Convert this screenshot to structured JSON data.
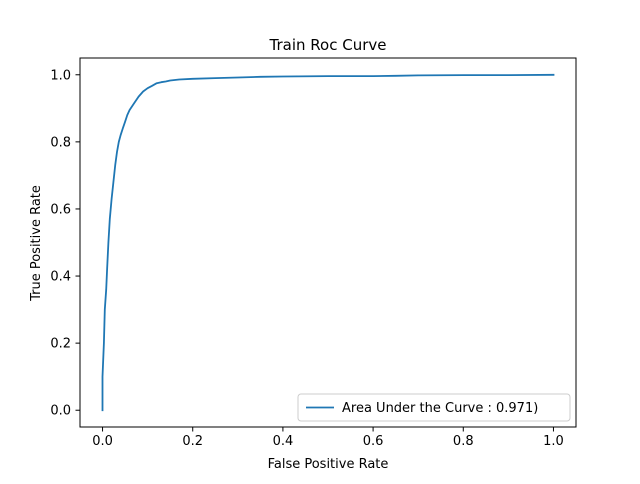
{
  "chart_data": {
    "type": "line",
    "title": "Train Roc Curve",
    "xlabel": "False Positive Rate",
    "ylabel": "True Positive Rate",
    "xlim": [
      -0.05,
      1.05
    ],
    "ylim": [
      -0.05,
      1.05
    ],
    "xticks": [
      0.0,
      0.2,
      0.4,
      0.6,
      0.8,
      1.0
    ],
    "xtick_labels": [
      "0.0",
      "0.2",
      "0.4",
      "0.6",
      "0.8",
      "1.0"
    ],
    "yticks": [
      0.0,
      0.2,
      0.4,
      0.6,
      0.8,
      1.0
    ],
    "ytick_labels": [
      "0.0",
      "0.2",
      "0.4",
      "0.6",
      "0.8",
      "1.0"
    ],
    "grid": false,
    "legend_position": "lower-right",
    "series": [
      {
        "name": "Area Under the Curve : 0.971)",
        "color": "#1f77b4",
        "x": [
          0.0,
          0.0,
          0.003,
          0.005,
          0.008,
          0.01,
          0.013,
          0.016,
          0.02,
          0.024,
          0.028,
          0.032,
          0.036,
          0.04,
          0.045,
          0.05,
          0.055,
          0.06,
          0.07,
          0.08,
          0.09,
          0.1,
          0.11,
          0.12,
          0.13,
          0.14,
          0.15,
          0.17,
          0.2,
          0.25,
          0.3,
          0.35,
          0.4,
          0.5,
          0.6,
          0.65,
          0.7,
          0.8,
          0.9,
          1.0
        ],
        "y": [
          0.0,
          0.1,
          0.2,
          0.3,
          0.36,
          0.42,
          0.5,
          0.57,
          0.63,
          0.68,
          0.73,
          0.77,
          0.8,
          0.82,
          0.84,
          0.86,
          0.88,
          0.895,
          0.915,
          0.935,
          0.95,
          0.96,
          0.967,
          0.975,
          0.978,
          0.98,
          0.983,
          0.986,
          0.988,
          0.99,
          0.992,
          0.994,
          0.995,
          0.996,
          0.996,
          0.997,
          0.998,
          0.999,
          0.999,
          1.0
        ]
      }
    ]
  }
}
